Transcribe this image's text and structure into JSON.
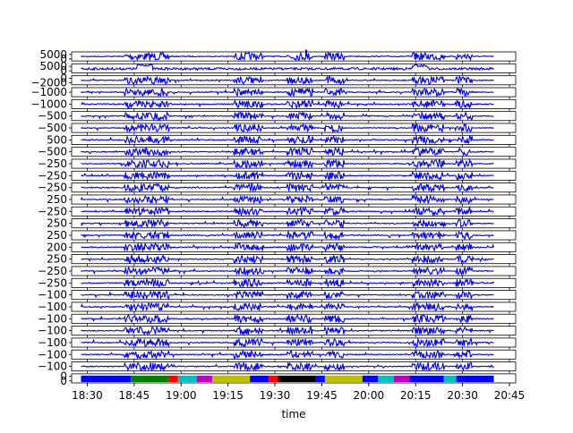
{
  "chart_data": {
    "type": "line",
    "xlabel": "time",
    "x_ticks": [
      "18:30",
      "18:45",
      "19:00",
      "19:15",
      "19:30",
      "19:45",
      "20:00",
      "20:15",
      "20:30",
      "20:45"
    ],
    "x_range": [
      "18:25",
      "20:47"
    ],
    "line_color": "#0000ff",
    "data_span": [
      "18:28",
      "20:40"
    ],
    "bursts": [
      "18:42-18:56",
      "19:17-19:26",
      "19:34-19:42",
      "19:46-19:52",
      "20:14-20:24",
      "20:28-20:33"
    ],
    "panels": [
      {
        "yticks": [
          "5000",
          "0"
        ],
        "spikes": [
          {
            "time": "19:40",
            "value": 6000
          },
          {
            "time": "20:15",
            "value": 1200
          }
        ]
      },
      {
        "yticks": [
          "5000",
          "0"
        ],
        "steps": [
          {
            "time": "18:46",
            "value": 1800
          },
          {
            "time": "20:14",
            "value": 1500
          }
        ]
      },
      {
        "yticks": [
          "0",
          "−2000"
        ]
      },
      {
        "yticks": [
          "−1000"
        ]
      },
      {
        "yticks": [
          "−1000"
        ]
      },
      {
        "yticks": [
          "−500"
        ]
      },
      {
        "yticks": [
          "−500"
        ]
      },
      {
        "yticks": [
          "500"
        ]
      },
      {
        "yticks": [
          "−500"
        ]
      },
      {
        "yticks": [
          "−250"
        ]
      },
      {
        "yticks": [
          "−250"
        ]
      },
      {
        "yticks": [
          "−250"
        ]
      },
      {
        "yticks": [
          "250"
        ]
      },
      {
        "yticks": [
          "−250"
        ]
      },
      {
        "yticks": [
          "250"
        ]
      },
      {
        "yticks": [
          "250"
        ]
      },
      {
        "yticks": [
          "200"
        ]
      },
      {
        "yticks": [
          "250"
        ]
      },
      {
        "yticks": [
          "−250"
        ]
      },
      {
        "yticks": [
          "−250"
        ]
      },
      {
        "yticks": [
          "−100"
        ]
      },
      {
        "yticks": [
          "−100"
        ]
      },
      {
        "yticks": [
          "−100"
        ]
      },
      {
        "yticks": [
          "−100"
        ]
      },
      {
        "yticks": [
          "−100"
        ]
      },
      {
        "yticks": [
          "−100"
        ]
      },
      {
        "yticks": [
          "−100"
        ]
      },
      {
        "yticks": [
          "0",
          "0"
        ],
        "labels": [
          {
            "start": "18:28",
            "end": "18:44",
            "color": "#0000ff"
          },
          {
            "start": "18:44",
            "end": "18:56",
            "color": "#008000"
          },
          {
            "start": "18:56",
            "end": "18:59",
            "color": "#ff0000"
          },
          {
            "start": "18:59",
            "end": "19:05",
            "color": "#00bfbf"
          },
          {
            "start": "19:05",
            "end": "19:10",
            "color": "#bf00bf"
          },
          {
            "start": "19:10",
            "end": "19:22",
            "color": "#bfbf00"
          },
          {
            "start": "19:22",
            "end": "19:28",
            "color": "#0000ff"
          },
          {
            "start": "19:28",
            "end": "19:31",
            "color": "#ff0000"
          },
          {
            "start": "19:31",
            "end": "19:43",
            "color": "#000000"
          },
          {
            "start": "19:43",
            "end": "19:46",
            "color": "#0000ff"
          },
          {
            "start": "19:46",
            "end": "19:58",
            "color": "#bfbf00"
          },
          {
            "start": "19:58",
            "end": "20:03",
            "color": "#0000ff"
          },
          {
            "start": "20:03",
            "end": "20:08",
            "color": "#00bfbf"
          },
          {
            "start": "20:08",
            "end": "20:13",
            "color": "#bf00bf"
          },
          {
            "start": "20:13",
            "end": "20:24",
            "color": "#0000ff"
          },
          {
            "start": "20:24",
            "end": "20:28",
            "color": "#00bfbf"
          },
          {
            "start": "20:28",
            "end": "20:40",
            "color": "#0000ff"
          }
        ]
      }
    ]
  }
}
